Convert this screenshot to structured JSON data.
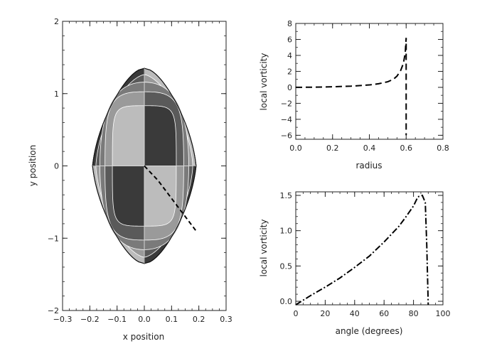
{
  "chart_data": [
    {
      "id": "contour",
      "type": "contour",
      "xlabel": "x position",
      "ylabel": "y position",
      "xlim": [
        -0.3,
        0.3
      ],
      "ylim": [
        -2,
        2
      ],
      "xticks": [
        "−0.3",
        "−0.2",
        "−0.1",
        "0.0",
        "0.1",
        "0.2",
        "0.3"
      ],
      "yticks": [
        "−2",
        "−1",
        "0",
        "1",
        "2"
      ],
      "shape": {
        "x_half_width": 0.19,
        "y_half_height": 1.35,
        "bands": 5,
        "band_fills": [
          "#3a3a3a",
          "#5a5a5a",
          "#7a7a7a",
          "#9a9a9a",
          "#bcbcbc"
        ]
      },
      "overlay_dashed_path": [
        [
          0.0,
          0.0
        ],
        [
          0.05,
          -0.2
        ],
        [
          0.1,
          -0.45
        ],
        [
          0.15,
          -0.7
        ],
        [
          0.19,
          -0.9
        ]
      ]
    },
    {
      "id": "radius",
      "type": "line",
      "xlabel": "radius",
      "ylabel": "local vorticity",
      "xlim": [
        0.0,
        0.8
      ],
      "ylim": [
        -6.5,
        8
      ],
      "xticks": [
        "0.0",
        "0.2",
        "0.4",
        "0.6",
        "0.8"
      ],
      "yticks": [
        "−6",
        "−4",
        "−2",
        "0",
        "2",
        "4",
        "6",
        "8"
      ],
      "series": [
        {
          "style": "dashed",
          "x": [
            0.0,
            0.1,
            0.2,
            0.3,
            0.4,
            0.45,
            0.5,
            0.53,
            0.55,
            0.57,
            0.585,
            0.595,
            0.6,
            0.6
          ],
          "y": [
            0.0,
            0.02,
            0.07,
            0.15,
            0.3,
            0.45,
            0.7,
            1.0,
            1.4,
            2.1,
            3.0,
            4.3,
            6.2,
            -6.0
          ]
        }
      ]
    },
    {
      "id": "angle",
      "type": "line",
      "xlabel": "angle (degrees)",
      "ylabel": "local vorticity",
      "xlim": [
        0,
        100
      ],
      "ylim": [
        -0.05,
        1.55
      ],
      "xticks": [
        "0",
        "20",
        "40",
        "60",
        "80",
        "100"
      ],
      "yticks": [
        "0.0",
        "0.5",
        "1.0",
        "1.5"
      ],
      "series": [
        {
          "style": "dash-dot",
          "x": [
            0,
            10,
            20,
            30,
            40,
            50,
            60,
            70,
            75,
            80,
            83,
            86,
            88,
            89,
            90
          ],
          "y": [
            -0.05,
            0.08,
            0.2,
            0.33,
            0.48,
            0.64,
            0.84,
            1.06,
            1.2,
            1.35,
            1.48,
            1.5,
            1.4,
            0.8,
            -0.05
          ]
        }
      ]
    }
  ]
}
